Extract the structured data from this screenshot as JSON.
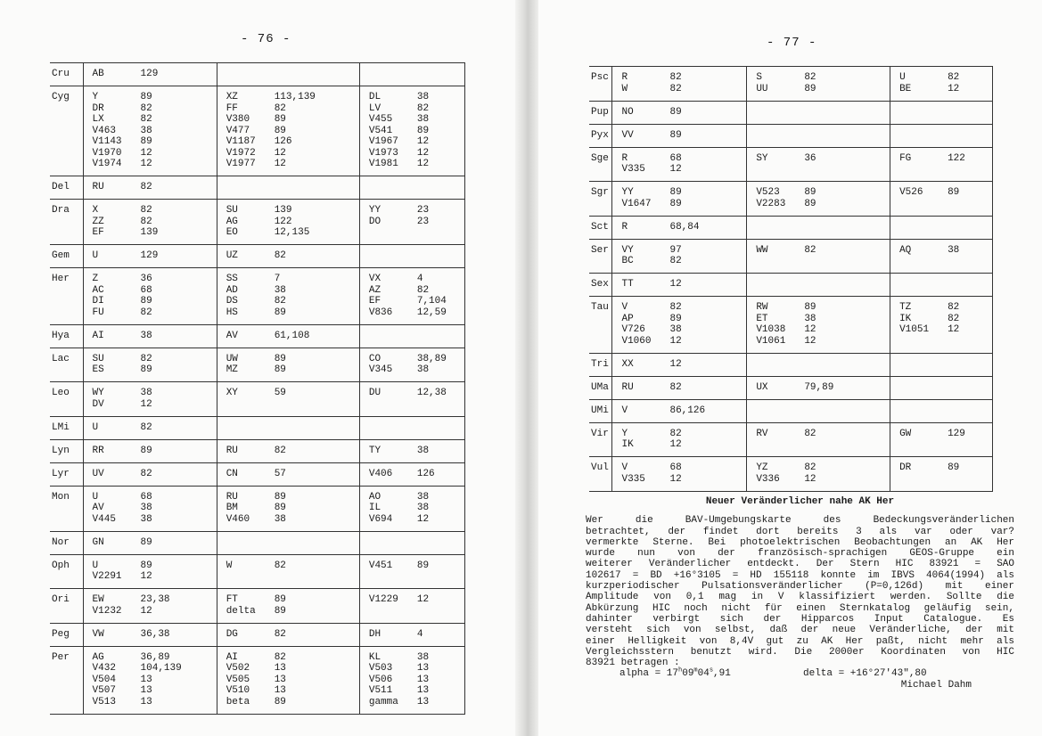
{
  "left_page": {
    "page_number": "- 76 -",
    "rows": [
      {
        "const": "Cru",
        "cols": [
          [
            [
              "AB",
              "129"
            ]
          ],
          [],
          []
        ]
      },
      {
        "const": "Cyg",
        "cols": [
          [
            [
              "Y",
              "89"
            ],
            [
              "DR",
              "82"
            ],
            [
              "LX",
              "82"
            ],
            [
              "V463",
              "38"
            ],
            [
              "V1143",
              "89"
            ],
            [
              "V1970",
              "12"
            ],
            [
              "V1974",
              "12"
            ]
          ],
          [
            [
              "XZ",
              "113,139"
            ],
            [
              "FF",
              "82"
            ],
            [
              "V380",
              "89"
            ],
            [
              "V477",
              "89"
            ],
            [
              "V1187",
              "126"
            ],
            [
              "V1972",
              "12"
            ],
            [
              "V1977",
              "12"
            ]
          ],
          [
            [
              "DL",
              "38"
            ],
            [
              "LV",
              "82"
            ],
            [
              "V455",
              "38"
            ],
            [
              "V541",
              "89"
            ],
            [
              "V1967",
              "12"
            ],
            [
              "V1973",
              "12"
            ],
            [
              "V1981",
              "12"
            ]
          ]
        ]
      },
      {
        "const": "Del",
        "cols": [
          [
            [
              "RU",
              "82"
            ]
          ],
          [],
          []
        ]
      },
      {
        "const": "Dra",
        "cols": [
          [
            [
              "X",
              "82"
            ],
            [
              "ZZ",
              "82"
            ],
            [
              "EF",
              "139"
            ]
          ],
          [
            [
              "SU",
              "139"
            ],
            [
              "AG",
              "122"
            ],
            [
              "EO",
              "12,135"
            ]
          ],
          [
            [
              "YY",
              "23"
            ],
            [
              "DO",
              "23"
            ]
          ]
        ]
      },
      {
        "const": "Gem",
        "cols": [
          [
            [
              "U",
              "129"
            ]
          ],
          [
            [
              "UZ",
              "82"
            ]
          ],
          []
        ]
      },
      {
        "const": "Her",
        "cols": [
          [
            [
              "Z",
              "36"
            ],
            [
              "AC",
              "68"
            ],
            [
              "DI",
              "89"
            ],
            [
              "FU",
              "82"
            ]
          ],
          [
            [
              "SS",
              "7"
            ],
            [
              "AD",
              "38"
            ],
            [
              "DS",
              "82"
            ],
            [
              "HS",
              "89"
            ]
          ],
          [
            [
              "VX",
              "4"
            ],
            [
              "AZ",
              "82"
            ],
            [
              "EF",
              "7,104"
            ],
            [
              "V836",
              "12,59"
            ]
          ]
        ]
      },
      {
        "const": "Hya",
        "cols": [
          [
            [
              "AI",
              "38"
            ]
          ],
          [
            [
              "AV",
              "61,108"
            ]
          ],
          []
        ]
      },
      {
        "const": "Lac",
        "cols": [
          [
            [
              "SU",
              "82"
            ],
            [
              "ES",
              "89"
            ]
          ],
          [
            [
              "UW",
              "89"
            ],
            [
              "MZ",
              "89"
            ]
          ],
          [
            [
              "CO",
              "38,89"
            ],
            [
              "V345",
              "38"
            ]
          ]
        ]
      },
      {
        "const": "Leo",
        "cols": [
          [
            [
              "WY",
              "38"
            ],
            [
              "DV",
              "12"
            ]
          ],
          [
            [
              "XY",
              "59"
            ]
          ],
          [
            [
              "DU",
              "12,38"
            ]
          ]
        ]
      },
      {
        "const": "LMi",
        "cols": [
          [
            [
              "U",
              "82"
            ]
          ],
          [],
          []
        ]
      },
      {
        "const": "Lyn",
        "cols": [
          [
            [
              "RR",
              "89"
            ]
          ],
          [
            [
              "RU",
              "82"
            ]
          ],
          [
            [
              "TY",
              "38"
            ]
          ]
        ]
      },
      {
        "const": "Lyr",
        "cols": [
          [
            [
              "UV",
              "82"
            ]
          ],
          [
            [
              "CN",
              "57"
            ]
          ],
          [
            [
              "V406",
              "126"
            ]
          ]
        ]
      },
      {
        "const": "Mon",
        "cols": [
          [
            [
              "U",
              "68"
            ],
            [
              "AV",
              "38"
            ],
            [
              "V445",
              "38"
            ]
          ],
          [
            [
              "RU",
              "89"
            ],
            [
              "BM",
              "89"
            ],
            [
              "V460",
              "38"
            ]
          ],
          [
            [
              "AO",
              "38"
            ],
            [
              "IL",
              "38"
            ],
            [
              "V694",
              "12"
            ]
          ]
        ]
      },
      {
        "const": "Nor",
        "cols": [
          [
            [
              "GN",
              "89"
            ]
          ],
          [],
          []
        ]
      },
      {
        "const": "Oph",
        "cols": [
          [
            [
              "U",
              "89"
            ],
            [
              "V2291",
              "12"
            ]
          ],
          [
            [
              "W",
              "82"
            ]
          ],
          [
            [
              "V451",
              "89"
            ]
          ]
        ]
      },
      {
        "const": "Ori",
        "cols": [
          [
            [
              "EW",
              "23,38"
            ],
            [
              "V1232",
              "12"
            ]
          ],
          [
            [
              "FT",
              "89"
            ],
            [
              "delta",
              "89"
            ]
          ],
          [
            [
              "V1229",
              "12"
            ]
          ]
        ]
      },
      {
        "const": "Peg",
        "cols": [
          [
            [
              "VW",
              "36,38"
            ]
          ],
          [
            [
              "DG",
              "82"
            ]
          ],
          [
            [
              "DH",
              "4"
            ]
          ]
        ]
      },
      {
        "const": "Per",
        "cols": [
          [
            [
              "AG",
              "36,89"
            ],
            [
              "V432",
              "104,139"
            ],
            [
              "V504",
              "13"
            ],
            [
              "V507",
              "13"
            ],
            [
              "V513",
              "13"
            ]
          ],
          [
            [
              "AI",
              "82"
            ],
            [
              "V502",
              "13"
            ],
            [
              "V505",
              "13"
            ],
            [
              "V510",
              "13"
            ],
            [
              "beta",
              "89"
            ]
          ],
          [
            [
              "KL",
              "38"
            ],
            [
              "V503",
              "13"
            ],
            [
              "V506",
              "13"
            ],
            [
              "V511",
              "13"
            ],
            [
              "gamma",
              "13"
            ]
          ]
        ]
      }
    ]
  },
  "right_page": {
    "page_number": "- 77 -",
    "rows": [
      {
        "const": "Psc",
        "cols": [
          [
            [
              "R",
              "82"
            ],
            [
              "W",
              "82"
            ]
          ],
          [
            [
              "S",
              "82"
            ],
            [
              "UU",
              "89"
            ]
          ],
          [
            [
              "U",
              "82"
            ],
            [
              "BE",
              "12"
            ]
          ]
        ]
      },
      {
        "const": "Pup",
        "cols": [
          [
            [
              "NO",
              "89"
            ]
          ],
          [],
          []
        ]
      },
      {
        "const": "Pyx",
        "cols": [
          [
            [
              "VV",
              "89"
            ]
          ],
          [],
          []
        ]
      },
      {
        "const": "Sge",
        "cols": [
          [
            [
              "R",
              "68"
            ],
            [
              "V335",
              "12"
            ]
          ],
          [
            [
              "SY",
              "36"
            ]
          ],
          [
            [
              "FG",
              "122"
            ]
          ]
        ]
      },
      {
        "const": "Sgr",
        "cols": [
          [
            [
              "YY",
              "89"
            ],
            [
              "V1647",
              "89"
            ]
          ],
          [
            [
              "V523",
              "89"
            ],
            [
              "V2283",
              "89"
            ]
          ],
          [
            [
              "V526",
              "89"
            ]
          ]
        ]
      },
      {
        "const": "Sct",
        "cols": [
          [
            [
              "R",
              "68,84"
            ]
          ],
          [],
          []
        ]
      },
      {
        "const": "Ser",
        "cols": [
          [
            [
              "VY",
              "97"
            ],
            [
              "BC",
              "82"
            ]
          ],
          [
            [
              "WW",
              "82"
            ]
          ],
          [
            [
              "AQ",
              "38"
            ]
          ]
        ]
      },
      {
        "const": "Sex",
        "cols": [
          [
            [
              "TT",
              "12"
            ]
          ],
          [],
          []
        ]
      },
      {
        "const": "Tau",
        "cols": [
          [
            [
              "V",
              "82"
            ],
            [
              "AP",
              "89"
            ],
            [
              "V726",
              "38"
            ],
            [
              "V1060",
              "12"
            ]
          ],
          [
            [
              "RW",
              "89"
            ],
            [
              "ET",
              "38"
            ],
            [
              "V1038",
              "12"
            ],
            [
              "V1061",
              "12"
            ]
          ],
          [
            [
              "TZ",
              "82"
            ],
            [
              "IK",
              "82"
            ],
            [
              "V1051",
              "12"
            ]
          ]
        ]
      },
      {
        "const": "Tri",
        "cols": [
          [
            [
              "XX",
              "12"
            ]
          ],
          [],
          []
        ]
      },
      {
        "const": "UMa",
        "cols": [
          [
            [
              "RU",
              "82"
            ]
          ],
          [
            [
              "UX",
              "79,89"
            ]
          ],
          []
        ]
      },
      {
        "const": "UMi",
        "cols": [
          [
            [
              "V",
              "86,126"
            ]
          ],
          [],
          []
        ]
      },
      {
        "const": "Vir",
        "cols": [
          [
            [
              "Y",
              "82"
            ],
            [
              "IK",
              "12"
            ]
          ],
          [
            [
              "RV",
              "82"
            ]
          ],
          [
            [
              "GW",
              "129"
            ]
          ]
        ]
      },
      {
        "const": "Vul",
        "cols": [
          [
            [
              "V",
              "68"
            ],
            [
              "V335",
              "12"
            ]
          ],
          [
            [
              "YZ",
              "82"
            ],
            [
              "V336",
              "12"
            ]
          ],
          [
            [
              "DR",
              "89"
            ]
          ]
        ]
      }
    ],
    "article": {
      "title": "Neuer Veränderlicher nahe AK Her",
      "lines": [
        "Wer die BAV-Umgebungskarte des Bedeckungsveränderlichen",
        "betrachtet, der findet dort bereits 3 als var oder var?",
        "vermerkte Sterne. Bei photoelektrischen Beobachtungen an AK Her",
        "wurde nun von der französisch-sprachigen GEOS-Gruppe ein",
        "weiterer Veränderlicher entdeckt. Der Stern HIC 83921 = SAO",
        "102617 = BD +16°3105 = HD 155118 konnte im IBVS 4064(1994) als",
        "kurzperiodischer Pulsationsveränderlicher (P=0,126d) mit einer",
        "Amplitude von 0,1 mag in V klassifiziert werden. Sollte die",
        "Abkürzung HIC noch nicht für einen Sternkatalog geläufig sein,",
        "dahinter verbirgt sich der Hipparcos Input Catalogue. Es",
        "versteht sich von selbst, daß der neue Veränderliche, der mit",
        "einer Helligkeit von 8,4V gut zu AK Her paßt, nicht mehr als",
        "Vergleichsstern benutzt wird. Die 2000er Koordinaten von HIC",
        "83921 betragen :"
      ],
      "alpha": {
        "label": "alpha = 17",
        "h": "h",
        "p1": "09",
        "m": "m",
        "p2": "04",
        "s": "s",
        "p3": ",91"
      },
      "delta": "delta = +16°27′43″,80",
      "author": "Michael Dahm"
    }
  }
}
